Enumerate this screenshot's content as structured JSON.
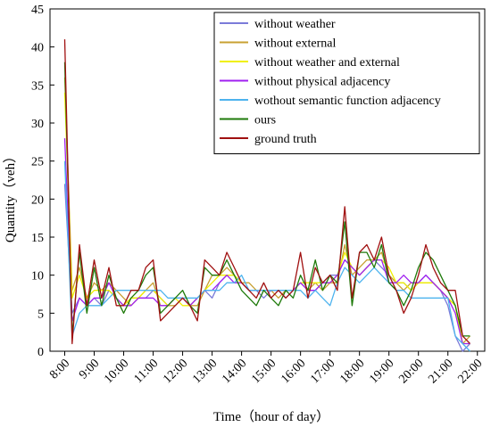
{
  "chart_data": {
    "type": "line",
    "xlabel": "Time（hour of day）",
    "ylabel": "Quantity（veh）",
    "xlim": [
      7.5,
      22.25
    ],
    "ylim": [
      0,
      45
    ],
    "x_tick_values": [
      8,
      9,
      10,
      11,
      12,
      13,
      14,
      15,
      16,
      17,
      18,
      19,
      20,
      21,
      22
    ],
    "x_tick_labels": [
      "8:00",
      "9:00",
      "10:00",
      "11:00",
      "12:00",
      "13:00",
      "14:00",
      "15:00",
      "16:00",
      "17:00",
      "18:00",
      "19:00",
      "20:00",
      "21:00",
      "22:00"
    ],
    "y_ticks": [
      0,
      5,
      10,
      15,
      20,
      25,
      30,
      35,
      40,
      45
    ],
    "legend_position": "top-right",
    "x": [
      8.0,
      8.25,
      8.5,
      8.75,
      9.0,
      9.25,
      9.5,
      9.75,
      10.0,
      10.25,
      10.5,
      10.75,
      11.0,
      11.25,
      11.5,
      11.75,
      12.0,
      12.25,
      12.5,
      12.75,
      13.0,
      13.25,
      13.5,
      13.75,
      14.0,
      14.25,
      14.5,
      14.75,
      15.0,
      15.25,
      15.5,
      15.75,
      16.0,
      16.25,
      16.5,
      16.75,
      17.0,
      17.25,
      17.5,
      17.75,
      18.0,
      18.25,
      18.5,
      18.75,
      19.0,
      19.25,
      19.5,
      19.75,
      20.0,
      20.25,
      20.5,
      20.75,
      21.0,
      21.25,
      21.5,
      21.75
    ],
    "series": [
      {
        "name": "without weather",
        "color": "#7b7bd9",
        "values": [
          22,
          5,
          7,
          6,
          7,
          6,
          8,
          7,
          6,
          7,
          7,
          7,
          8,
          7,
          6,
          7,
          7,
          6,
          7,
          8,
          7,
          9,
          10,
          10,
          9,
          8,
          8,
          7,
          8,
          8,
          7,
          8,
          9,
          8,
          8,
          9,
          10,
          10,
          12,
          11,
          10,
          11,
          12,
          11,
          10,
          9,
          9,
          8,
          9,
          10,
          9,
          8,
          6,
          2,
          0,
          1
        ]
      },
      {
        "name": "without external",
        "color": "#c8a032",
        "values": [
          36,
          8,
          11,
          7,
          9,
          8,
          9,
          8,
          7,
          6,
          7,
          8,
          9,
          6,
          6,
          6,
          7,
          6,
          6,
          8,
          10,
          10,
          11,
          10,
          9,
          9,
          8,
          8,
          8,
          7,
          8,
          8,
          9,
          8,
          9,
          8,
          9,
          9,
          14,
          10,
          11,
          12,
          12,
          13,
          10,
          9,
          8,
          9,
          9,
          9,
          9,
          8,
          7,
          6,
          1,
          2
        ]
      },
      {
        "name": "without weather and external",
        "color": "#f0f000",
        "values": [
          34,
          7,
          10,
          7,
          8,
          8,
          8,
          7,
          6,
          7,
          7,
          8,
          8,
          7,
          6,
          7,
          6,
          6,
          7,
          8,
          9,
          10,
          10,
          10,
          9,
          8,
          8,
          8,
          8,
          8,
          8,
          8,
          9,
          9,
          9,
          9,
          9,
          10,
          13,
          11,
          10,
          11,
          12,
          12,
          11,
          9,
          9,
          8,
          9,
          9,
          9,
          8,
          7,
          6,
          1,
          1
        ]
      },
      {
        "name": "without physical adjacency",
        "color": "#a020f0",
        "values": [
          28,
          4,
          7,
          6,
          7,
          7,
          9,
          7,
          6,
          6,
          7,
          7,
          7,
          6,
          6,
          7,
          7,
          6,
          7,
          8,
          8,
          9,
          10,
          9,
          9,
          8,
          8,
          8,
          8,
          8,
          8,
          8,
          9,
          8,
          8,
          9,
          9,
          10,
          12,
          11,
          10,
          11,
          12,
          12,
          9,
          9,
          10,
          9,
          9,
          10,
          9,
          8,
          7,
          5,
          1,
          1
        ]
      },
      {
        "name": "wothout semantic function adjacency",
        "color": "#4db3ee",
        "values": [
          25,
          2,
          5,
          6,
          6,
          6,
          7,
          8,
          8,
          8,
          8,
          8,
          8,
          8,
          7,
          7,
          7,
          7,
          7,
          8,
          8,
          8,
          9,
          9,
          10,
          8,
          8,
          8,
          8,
          8,
          8,
          8,
          8,
          7,
          8,
          7,
          6,
          9,
          11,
          10,
          9,
          10,
          11,
          10,
          9,
          8,
          8,
          7,
          7,
          7,
          7,
          7,
          7,
          2,
          1,
          0
        ]
      },
      {
        "name": "ours",
        "color": "#1e7a0a",
        "values": [
          38,
          2,
          13,
          5,
          11,
          6,
          10,
          7,
          5,
          7,
          8,
          10,
          11,
          5,
          6,
          7,
          8,
          6,
          5,
          11,
          10,
          10,
          12,
          10,
          8,
          7,
          6,
          8,
          7,
          6,
          8,
          7,
          10,
          8,
          12,
          8,
          10,
          9,
          17,
          6,
          13,
          13,
          11,
          14,
          9,
          8,
          6,
          8,
          11,
          13,
          12,
          10,
          8,
          6,
          2,
          2
        ]
      },
      {
        "name": "ground truth",
        "color": "#a01010",
        "values": [
          41,
          1,
          14,
          6,
          12,
          7,
          11,
          6,
          6,
          8,
          8,
          11,
          12,
          4,
          5,
          6,
          7,
          6,
          4,
          12,
          11,
          10,
          13,
          11,
          9,
          8,
          7,
          9,
          7,
          8,
          7,
          8,
          13,
          7,
          11,
          9,
          10,
          8,
          19,
          7,
          13,
          14,
          12,
          15,
          10,
          8,
          5,
          7,
          10,
          14,
          11,
          9,
          8,
          8,
          2,
          1
        ]
      }
    ]
  }
}
